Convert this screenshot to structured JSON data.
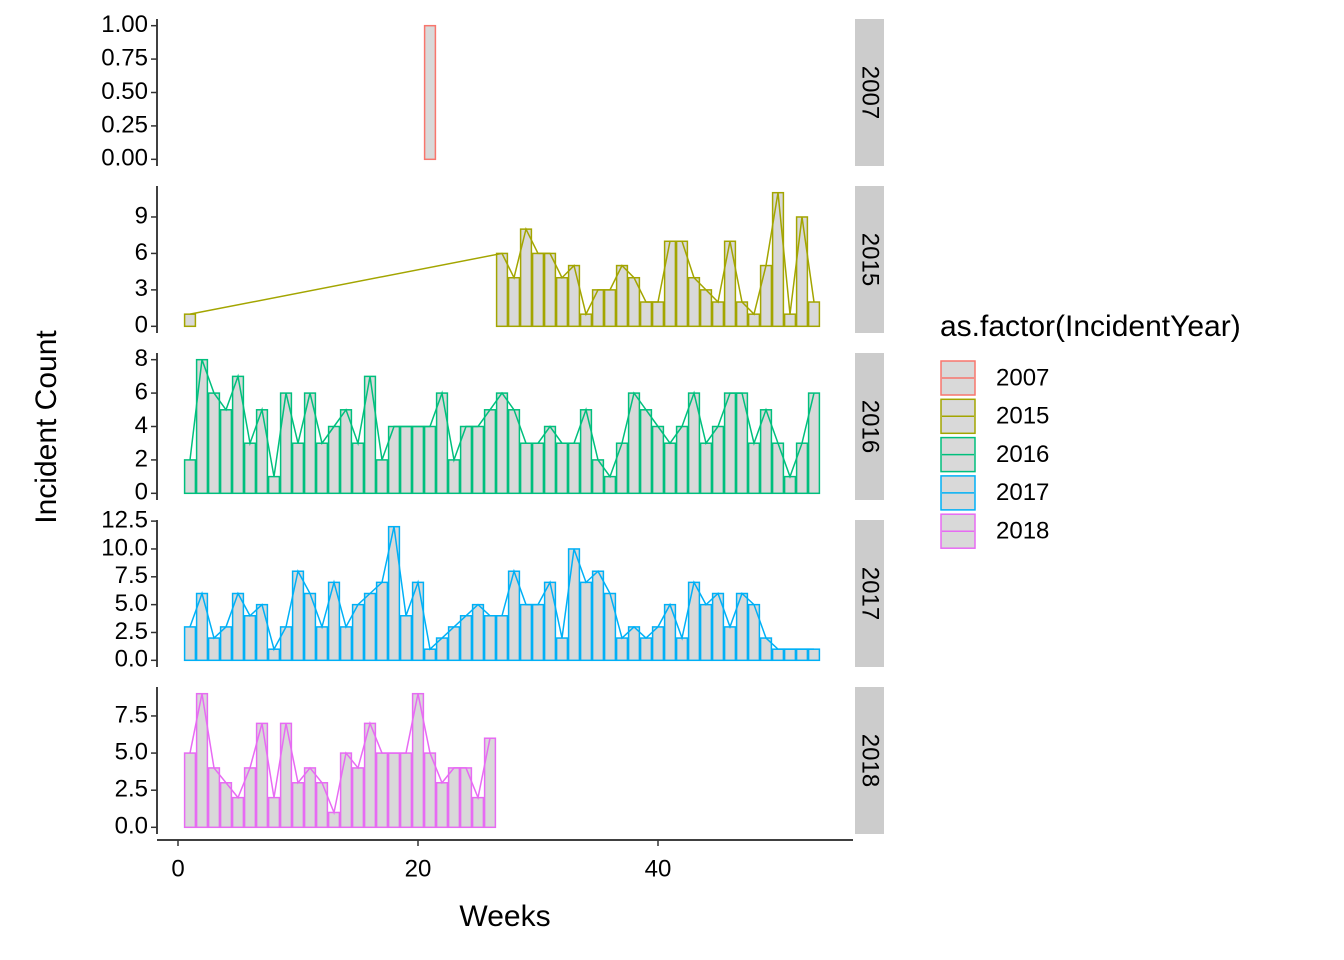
{
  "chart_data": {
    "type": "bar",
    "x_label": "Weeks",
    "y_label": "Incident Count",
    "legend_title": "as.factor(IncidentYear)",
    "xlim": [
      -1.75,
      56.25
    ],
    "xticks": [
      0,
      20,
      40
    ],
    "bar_fill": "#d9d9d9",
    "panels": [
      {
        "name": "2007",
        "color": "#F8766D",
        "x": [
          21
        ],
        "values": [
          1
        ],
        "ylim": [
          -0.05,
          1.05
        ],
        "yticks": [
          {
            "value": 0,
            "label": "0.00"
          },
          {
            "value": 0.25,
            "label": "0.25"
          },
          {
            "value": 0.5,
            "label": "0.50"
          },
          {
            "value": 0.75,
            "label": "0.75"
          },
          {
            "value": 1,
            "label": "1.00"
          }
        ]
      },
      {
        "name": "2015",
        "color": "#A3A500",
        "x": [
          1,
          27,
          28,
          29,
          30,
          31,
          32,
          33,
          34,
          35,
          36,
          37,
          38,
          39,
          40,
          41,
          42,
          43,
          44,
          45,
          46,
          47,
          48,
          49,
          50,
          51,
          52,
          53
        ],
        "values": [
          1,
          6,
          4,
          8,
          6,
          6,
          4,
          5,
          1,
          3,
          3,
          5,
          4,
          2,
          2,
          7,
          7,
          4,
          3,
          2,
          7,
          2,
          1,
          5,
          11,
          1,
          9,
          2
        ],
        "ylim": [
          -0.55,
          11.55
        ],
        "yticks": [
          0,
          3,
          6,
          9
        ]
      },
      {
        "name": "2016",
        "color": "#00BF7D",
        "x": [
          1,
          2,
          3,
          4,
          5,
          6,
          7,
          8,
          9,
          10,
          11,
          12,
          13,
          14,
          15,
          16,
          17,
          18,
          19,
          20,
          21,
          22,
          23,
          24,
          25,
          26,
          27,
          28,
          29,
          30,
          31,
          32,
          33,
          34,
          35,
          36,
          37,
          38,
          39,
          40,
          41,
          42,
          43,
          44,
          45,
          46,
          47,
          48,
          49,
          50,
          51,
          52,
          53
        ],
        "values": [
          2,
          8,
          6,
          5,
          7,
          3,
          5,
          1,
          6,
          3,
          6,
          3,
          4,
          5,
          3,
          7,
          2,
          4,
          4,
          4,
          4,
          6,
          2,
          4,
          4,
          5,
          6,
          5,
          3,
          3,
          4,
          3,
          3,
          5,
          2,
          1,
          3,
          6,
          5,
          4,
          3,
          4,
          6,
          3,
          4,
          6,
          6,
          3,
          5,
          3,
          1,
          3,
          6
        ],
        "ylim": [
          -0.4,
          8.4
        ],
        "yticks": [
          0,
          2,
          4,
          6,
          8
        ]
      },
      {
        "name": "2017",
        "color": "#00B0F6",
        "x": [
          1,
          2,
          3,
          4,
          5,
          6,
          7,
          8,
          9,
          10,
          11,
          12,
          13,
          14,
          15,
          16,
          17,
          18,
          19,
          20,
          21,
          22,
          23,
          24,
          25,
          26,
          27,
          28,
          29,
          30,
          31,
          32,
          33,
          34,
          35,
          36,
          37,
          38,
          39,
          40,
          41,
          42,
          43,
          44,
          45,
          46,
          47,
          48,
          49,
          50,
          51,
          52,
          53
        ],
        "values": [
          3,
          6,
          2,
          3,
          6,
          4,
          5,
          1,
          3,
          8,
          6,
          3,
          7,
          3,
          5,
          6,
          7,
          12,
          4,
          7,
          1,
          2,
          3,
          4,
          5,
          4,
          4,
          8,
          5,
          5,
          7,
          2,
          10,
          7,
          8,
          6,
          2,
          3,
          2,
          3,
          5,
          2,
          7,
          5,
          6,
          3,
          6,
          5,
          2,
          1,
          1,
          1,
          1
        ],
        "ylim": [
          -0.6,
          12.6
        ],
        "yticks": [
          {
            "value": 0,
            "label": "0.0"
          },
          {
            "value": 2.5,
            "label": "2.5"
          },
          {
            "value": 5,
            "label": "5.0"
          },
          {
            "value": 7.5,
            "label": "7.5"
          },
          {
            "value": 10,
            "label": "10.0"
          },
          {
            "value": 12.5,
            "label": "12.5"
          }
        ]
      },
      {
        "name": "2018",
        "color": "#E76BF3",
        "x": [
          1,
          2,
          3,
          4,
          5,
          6,
          7,
          8,
          9,
          10,
          11,
          12,
          13,
          14,
          15,
          16,
          17,
          18,
          19,
          20,
          21,
          22,
          23,
          24,
          25,
          26
        ],
        "values": [
          5,
          9,
          4,
          3,
          2,
          4,
          7,
          2,
          7,
          3,
          4,
          3,
          1,
          5,
          4,
          7,
          5,
          5,
          5,
          9,
          5,
          3,
          4,
          4,
          2,
          6
        ],
        "ylim": [
          -0.45,
          9.45
        ],
        "yticks": [
          {
            "value": 0,
            "label": "0.0"
          },
          {
            "value": 2.5,
            "label": "2.5"
          },
          {
            "value": 5,
            "label": "5.0"
          },
          {
            "value": 7.5,
            "label": "7.5"
          }
        ]
      }
    ]
  }
}
